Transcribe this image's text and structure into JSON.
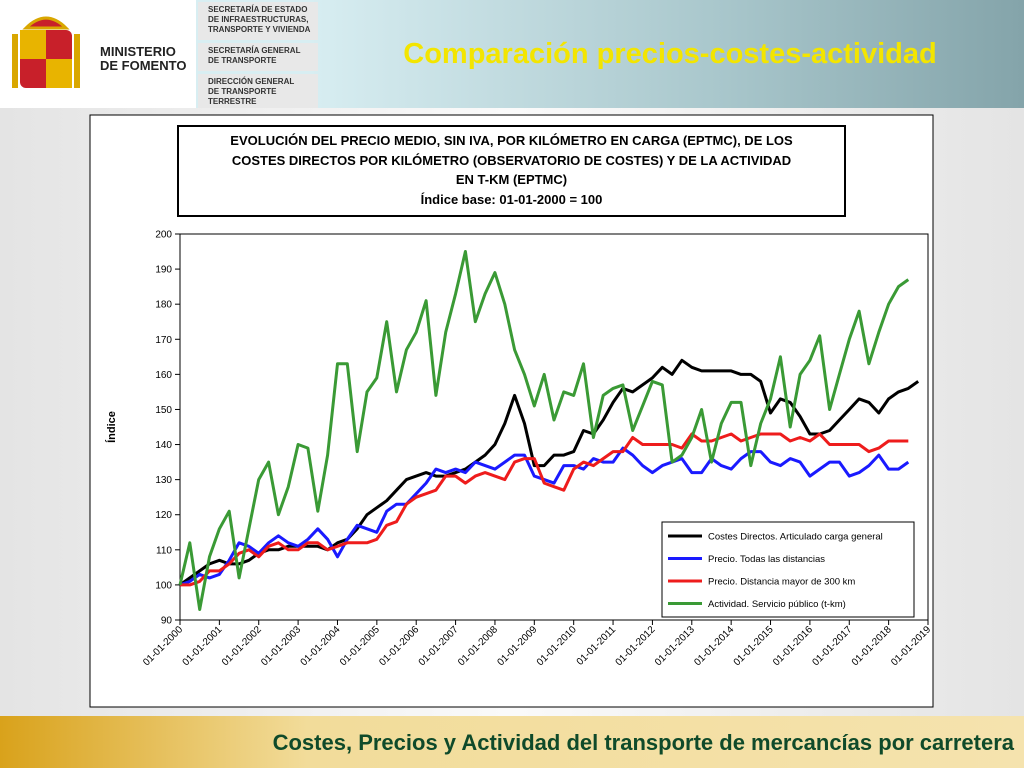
{
  "header": {
    "ministry": [
      "MINISTERIO",
      "DE FOMENTO"
    ],
    "units": [
      [
        "SECRETARÍA DE ESTADO",
        "DE INFRAESTRUCTURAS,",
        "TRANSPORTE Y VIVIENDA"
      ],
      [
        "SECRETARÍA GENERAL",
        "DE TRANSPORTE"
      ],
      [
        "DIRECCIÓN GENERAL",
        "DE TRANSPORTE",
        "TERRESTRE"
      ]
    ],
    "title": "Comparación precios-costes-actividad"
  },
  "footer": "Costes, Precios y Actividad del transporte de mercancías por carretera",
  "chart_data": {
    "type": "line",
    "title": [
      "EVOLUCIÓN DEL PRECIO MEDIO, SIN IVA, POR KILÓMETRO EN CARGA (EPTMC), DE LOS",
      "COSTES DIRECTOS POR KILÓMETRO (OBSERVATORIO DE COSTES) Y DE LA ACTIVIDAD",
      "EN T-KM (EPTMC)"
    ],
    "subtitle": "Índice base: 01-01-2000 = 100",
    "y_label": "Índice",
    "categories": [
      "01-01-2000",
      null,
      null,
      null,
      "01-01-2001",
      null,
      null,
      null,
      "01-01-2002",
      null,
      null,
      null,
      "01-01-2003",
      null,
      null,
      null,
      "01-01-2004",
      null,
      null,
      null,
      "01-01-2005",
      null,
      null,
      null,
      "01-01-2006",
      null,
      null,
      null,
      "01-01-2007",
      null,
      null,
      null,
      "01-01-2008",
      null,
      null,
      null,
      "01-01-2009",
      null,
      null,
      null,
      "01-01-2010",
      null,
      null,
      null,
      "01-01-2011",
      null,
      null,
      null,
      "01-01-2012",
      null,
      null,
      null,
      "01-01-2013",
      null,
      null,
      null,
      "01-01-2014",
      null,
      null,
      null,
      "01-01-2015",
      null,
      null,
      null,
      "01-01-2016",
      null,
      null,
      null,
      "01-01-2017",
      null,
      null,
      null,
      "01-01-2018",
      null,
      null,
      null,
      "01-01-2019"
    ],
    "ylim": [
      90,
      200
    ],
    "yticks": [
      90,
      100,
      110,
      120,
      130,
      140,
      150,
      160,
      170,
      180,
      190,
      200
    ],
    "legend": "lower right",
    "series": [
      {
        "name": "Costes Directos. Articulado carga general",
        "color": "#000000",
        "values": [
          100,
          102,
          104,
          106,
          107,
          106,
          106,
          107,
          109,
          110,
          110,
          111,
          111,
          111,
          111,
          110,
          112,
          113,
          116,
          120,
          122,
          124,
          127,
          130,
          131,
          132,
          131,
          131,
          132,
          133,
          135,
          137,
          140,
          146,
          154,
          146,
          134,
          134,
          137,
          137,
          138,
          144,
          143,
          147,
          152,
          156,
          155,
          157,
          159,
          162,
          160,
          164,
          162,
          161,
          161,
          161,
          161,
          160,
          160,
          158,
          149,
          153,
          152,
          148,
          143,
          143,
          144,
          147,
          150,
          153,
          152,
          149,
          153,
          155,
          156,
          158,
          null
        ]
      },
      {
        "name": "Precio. Todas las distancias",
        "color": "#1a1aff",
        "values": [
          100,
          101,
          103,
          102,
          103,
          107,
          112,
          111,
          109,
          112,
          114,
          112,
          111,
          113,
          116,
          113,
          108,
          113,
          117,
          116,
          115,
          121,
          123,
          123,
          126,
          129,
          133,
          132,
          133,
          132,
          135,
          134,
          133,
          135,
          137,
          137,
          131,
          130,
          129,
          134,
          134,
          133,
          136,
          135,
          135,
          139,
          137,
          134,
          132,
          134,
          135,
          136,
          132,
          132,
          136,
          134,
          133,
          136,
          138,
          138,
          135,
          134,
          136,
          135,
          131,
          133,
          135,
          135,
          131,
          132,
          134,
          137,
          133,
          133,
          135,
          null,
          null
        ]
      },
      {
        "name": "Precio. Distancia mayor de 300 km",
        "color": "#ee1c1c",
        "values": [
          100,
          100,
          101,
          104,
          104,
          106,
          109,
          110,
          108,
          111,
          112,
          110,
          110,
          112,
          112,
          110,
          111,
          112,
          112,
          112,
          113,
          117,
          118,
          123,
          125,
          126,
          127,
          131,
          131,
          129,
          131,
          132,
          131,
          130,
          135,
          136,
          136,
          129,
          128,
          127,
          133,
          135,
          134,
          136,
          138,
          138,
          142,
          140,
          140,
          140,
          140,
          139,
          143,
          141,
          141,
          142,
          143,
          141,
          142,
          143,
          143,
          143,
          141,
          142,
          141,
          143,
          140,
          140,
          140,
          140,
          138,
          139,
          141,
          141,
          141,
          null,
          null
        ]
      },
      {
        "name": "Actividad. Servicio público (t-km)",
        "color": "#3a9a35",
        "values": [
          100,
          112,
          93,
          108,
          116,
          121,
          102,
          116,
          130,
          135,
          120,
          128,
          140,
          139,
          121,
          137,
          163,
          163,
          138,
          155,
          159,
          175,
          155,
          167,
          172,
          181,
          154,
          172,
          183,
          195,
          175,
          183,
          189,
          180,
          167,
          160,
          151,
          160,
          147,
          155,
          154,
          163,
          142,
          154,
          156,
          157,
          144,
          151,
          158,
          157,
          135,
          137,
          142,
          150,
          135,
          146,
          152,
          152,
          134,
          146,
          153,
          165,
          145,
          160,
          164,
          171,
          150,
          160,
          170,
          178,
          163,
          172,
          180,
          185,
          187,
          null,
          null
        ]
      }
    ]
  }
}
